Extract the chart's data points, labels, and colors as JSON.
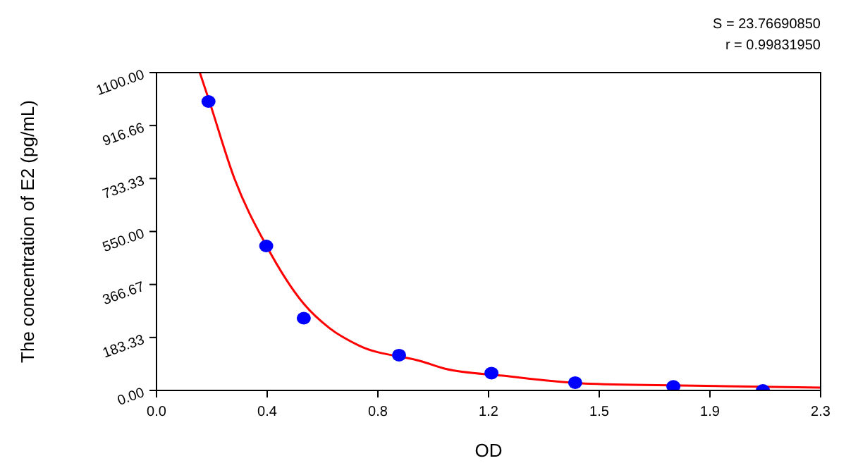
{
  "chart_data": {
    "type": "scatter",
    "xlabel": "OD",
    "ylabel": "The concentration of E2 (pg/mL)",
    "annotations": [
      "S = 23.76690850",
      "r = 0.99831950"
    ],
    "xlim": [
      0,
      2.3
    ],
    "xticks": [
      {
        "value": 0,
        "label": "0.0"
      },
      {
        "value": 0.3833,
        "label": "0.4"
      },
      {
        "value": 0.7667,
        "label": "0.8"
      },
      {
        "value": 1.15,
        "label": "1.2"
      },
      {
        "value": 1.5333,
        "label": "1.5"
      },
      {
        "value": 1.9167,
        "label": "1.9"
      },
      {
        "value": 2.3,
        "label": "2.3"
      }
    ],
    "ylim": [
      0,
      1100
    ],
    "yticks": [
      {
        "value": 0,
        "label": "0.00"
      },
      {
        "value": 183.33,
        "label": "183.33"
      },
      {
        "value": 366.67,
        "label": "366.67"
      },
      {
        "value": 550,
        "label": "550.00"
      },
      {
        "value": 733.33,
        "label": "733.33"
      },
      {
        "value": 916.66,
        "label": "916.66"
      },
      {
        "value": 1100,
        "label": "1100.00"
      }
    ],
    "grid": false,
    "marker": "circle",
    "series": [
      {
        "color": "#0000ff",
        "x": [
          0.18,
          0.38,
          0.51,
          0.84,
          1.16,
          1.45,
          1.79,
          2.1
        ],
        "values": [
          1000,
          500,
          250,
          122,
          60,
          27,
          14,
          0
        ]
      },
      {
        "type": "line",
        "color": "#ff0000",
        "marker": "none",
        "line_style": "solid",
        "x": [
          0.15,
          0.18,
          0.27,
          0.38,
          0.51,
          0.6,
          0.7,
          0.92,
          1.0,
          1.2,
          1.5,
          1.9,
          2.3
        ],
        "values": [
          1100,
          1010,
          733,
          502,
          300,
          215,
          156,
          100,
          75,
          51,
          23,
          16,
          10
        ]
      }
    ]
  }
}
